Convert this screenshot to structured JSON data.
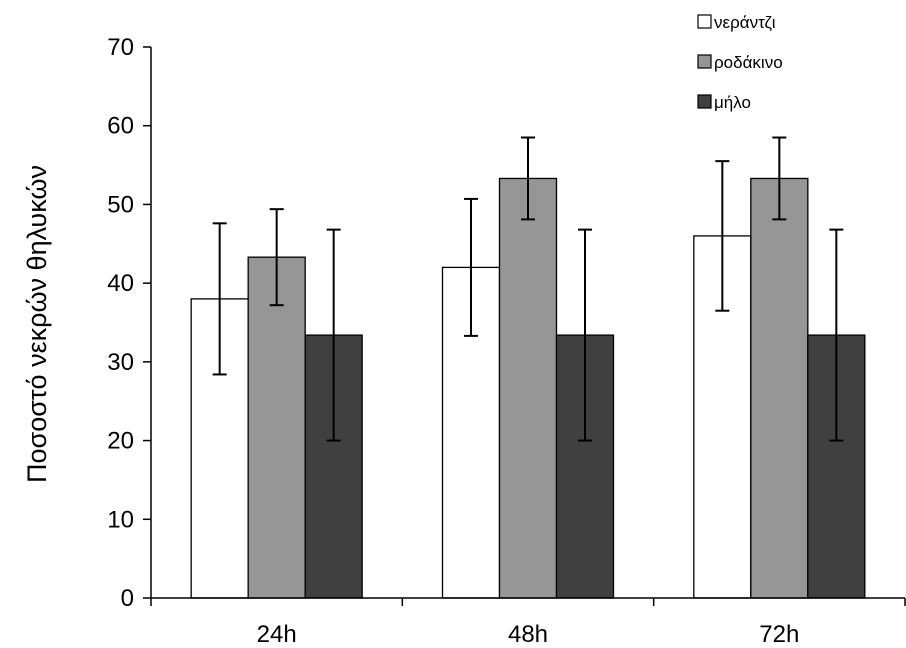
{
  "chart_data": {
    "type": "bar",
    "title": "",
    "xlabel": "",
    "ylabel": "Ποσοστό νεκρών θηλυκών",
    "categories": [
      "24h",
      "48h",
      "72h"
    ],
    "ylim": [
      0,
      70
    ],
    "yticks": [
      0,
      10,
      20,
      30,
      40,
      50,
      60,
      70
    ],
    "grid": false,
    "legend_position": "top-right",
    "series": [
      {
        "name": "νεράντζι",
        "color": "#ffffff",
        "values": [
          38,
          42,
          46
        ],
        "error": [
          9.6,
          8.7,
          9.5
        ]
      },
      {
        "name": "ροδάκινο",
        "color": "#969696",
        "values": [
          43.3,
          53.3,
          53.3
        ],
        "error": [
          6.1,
          5.2,
          5.2
        ]
      },
      {
        "name": "μήλο",
        "color": "#404040",
        "values": [
          33.4,
          33.4,
          33.4
        ],
        "error": [
          13.4,
          13.4,
          13.4
        ]
      }
    ]
  }
}
